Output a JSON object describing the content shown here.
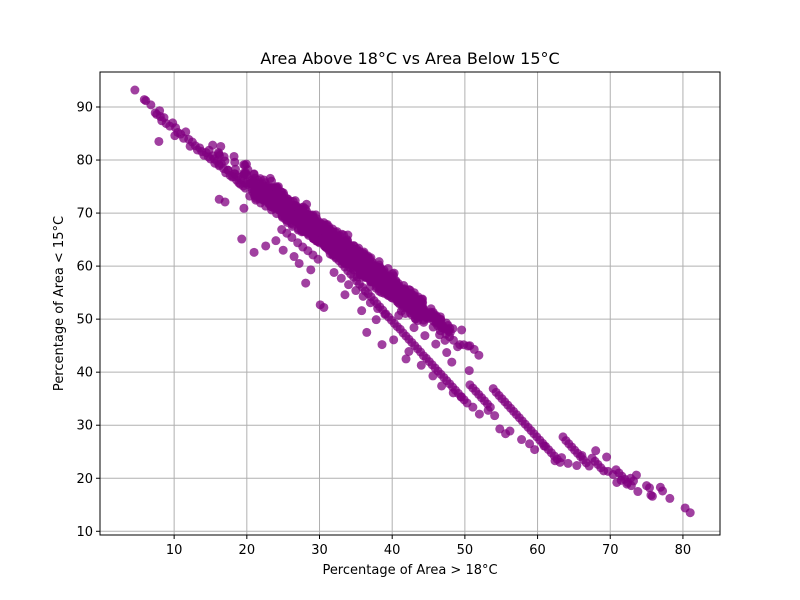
{
  "chart_data": {
    "type": "scatter",
    "title": "Area Above 18°C vs Area Below 15°C",
    "xlabel": "Percentage of Area > 18°C",
    "ylabel": "Percentage of Area < 15°C",
    "xlim": [
      -0.2,
      85.1
    ],
    "ylim": [
      9.3,
      96.6
    ],
    "xticks": [
      10,
      20,
      30,
      40,
      50,
      60,
      70,
      80
    ],
    "yticks": [
      10,
      20,
      30,
      40,
      50,
      60,
      70,
      80,
      90
    ],
    "grid": true,
    "marker_color": "#800080",
    "marker_alpha": 0.75,
    "trend": {
      "slope": -1.04,
      "intercept": 97.6,
      "spread": 1.7
    },
    "points": [
      [
        4.6,
        93.2
      ],
      [
        5.9,
        91.4
      ],
      [
        6.1,
        91.2
      ],
      [
        6.8,
        90.4
      ],
      [
        7.4,
        88.9
      ],
      [
        7.6,
        88.6
      ],
      [
        8.0,
        89.3
      ],
      [
        8.1,
        88.2
      ],
      [
        8.3,
        87.4
      ],
      [
        8.6,
        88.0
      ],
      [
        8.9,
        86.9
      ],
      [
        7.9,
        83.5
      ],
      [
        9.4,
        86.4
      ],
      [
        9.8,
        87.0
      ],
      [
        10.2,
        86.1
      ],
      [
        10.5,
        85.2
      ],
      [
        10.1,
        84.6
      ],
      [
        10.9,
        84.9
      ],
      [
        11.3,
        84.1
      ],
      [
        11.6,
        85.3
      ],
      [
        12.0,
        83.9
      ],
      [
        12.2,
        82.6
      ],
      [
        12.5,
        83.4
      ],
      [
        12.9,
        82.7
      ],
      [
        13.2,
        81.9
      ],
      [
        13.5,
        82.3
      ],
      [
        13.8,
        81.6
      ],
      [
        14.1,
        80.9
      ],
      [
        14.4,
        81.4
      ],
      [
        14.7,
        80.6
      ],
      [
        15.0,
        80.2
      ],
      [
        15.3,
        80.8
      ],
      [
        15.6,
        79.4
      ],
      [
        15.9,
        79.8
      ],
      [
        16.2,
        78.9
      ],
      [
        16.5,
        79.3
      ],
      [
        16.8,
        78.4
      ],
      [
        17.1,
        77.6
      ],
      [
        17.4,
        78.1
      ],
      [
        17.7,
        77.1
      ],
      [
        18.0,
        76.8
      ],
      [
        18.3,
        77.4
      ],
      [
        18.6,
        76.2
      ],
      [
        18.9,
        75.7
      ],
      [
        19.2,
        76.3
      ],
      [
        19.5,
        75.1
      ],
      [
        19.8,
        74.7
      ],
      [
        20.1,
        75.4
      ],
      [
        16.2,
        72.6
      ],
      [
        17.0,
        72.1
      ],
      [
        19.6,
        70.9
      ],
      [
        19.3,
        65.1
      ],
      [
        21.0,
        62.6
      ],
      [
        22.6,
        63.8
      ],
      [
        22.9,
        73.8
      ],
      [
        23.2,
        72.6
      ],
      [
        21.6,
        74.3
      ],
      [
        22.1,
        74.9
      ],
      [
        20.4,
        73.2
      ],
      [
        20.8,
        74.0
      ],
      [
        21.2,
        72.8
      ],
      [
        21.5,
        73.5
      ],
      [
        21.9,
        71.9
      ],
      [
        22.3,
        72.4
      ],
      [
        22.6,
        71.3
      ],
      [
        23.0,
        71.8
      ],
      [
        23.4,
        70.6
      ],
      [
        23.8,
        71.2
      ],
      [
        24.1,
        69.9
      ],
      [
        24.5,
        70.5
      ],
      [
        24.9,
        69.2
      ],
      [
        25.2,
        69.8
      ],
      [
        25.6,
        68.6
      ],
      [
        26.0,
        69.1
      ],
      [
        26.3,
        67.9
      ],
      [
        26.7,
        68.4
      ],
      [
        27.1,
        67.1
      ],
      [
        27.4,
        67.7
      ],
      [
        27.8,
        66.5
      ],
      [
        28.2,
        67.0
      ],
      [
        28.5,
        65.8
      ],
      [
        28.9,
        66.3
      ],
      [
        29.3,
        65.1
      ],
      [
        29.6,
        65.6
      ],
      [
        30.0,
        64.4
      ],
      [
        30.4,
        64.9
      ],
      [
        30.8,
        63.7
      ],
      [
        31.1,
        64.2
      ],
      [
        24.8,
        66.9
      ],
      [
        25.5,
        66.2
      ],
      [
        26.2,
        65.4
      ],
      [
        27.0,
        64.4
      ],
      [
        27.7,
        63.6
      ],
      [
        28.4,
        62.9
      ],
      [
        29.1,
        62.1
      ],
      [
        29.8,
        61.3
      ],
      [
        25.0,
        63.0
      ],
      [
        27.2,
        60.5
      ],
      [
        28.1,
        56.8
      ],
      [
        30.1,
        52.7
      ],
      [
        30.6,
        52.2
      ],
      [
        28.8,
        59.3
      ],
      [
        26.5,
        61.8
      ],
      [
        24.0,
        64.8
      ],
      [
        31.5,
        63.0
      ],
      [
        31.9,
        62.2
      ],
      [
        32.3,
        61.7
      ],
      [
        32.7,
        61.0
      ],
      [
        33.1,
        60.4
      ],
      [
        33.5,
        59.8
      ],
      [
        33.9,
        59.1
      ],
      [
        34.3,
        58.5
      ],
      [
        34.7,
        57.9
      ],
      [
        35.1,
        57.2
      ],
      [
        35.5,
        56.6
      ],
      [
        35.9,
        56.0
      ],
      [
        36.3,
        55.3
      ],
      [
        36.7,
        54.8
      ],
      [
        37.1,
        54.2
      ],
      [
        37.5,
        53.5
      ],
      [
        37.9,
        52.9
      ],
      [
        38.3,
        52.3
      ],
      [
        38.7,
        51.7
      ],
      [
        39.1,
        51.0
      ],
      [
        39.5,
        50.4
      ],
      [
        39.9,
        49.8
      ],
      [
        40.3,
        49.2
      ],
      [
        40.7,
        48.6
      ],
      [
        32.0,
        58.8
      ],
      [
        33.0,
        57.7
      ],
      [
        34.0,
        56.5
      ],
      [
        35.0,
        55.4
      ],
      [
        36.0,
        54.3
      ],
      [
        37.0,
        53.1
      ],
      [
        38.0,
        52.0
      ],
      [
        39.0,
        50.9
      ],
      [
        33.5,
        54.6
      ],
      [
        35.8,
        51.6
      ],
      [
        37.8,
        49.9
      ],
      [
        36.5,
        47.5
      ],
      [
        38.6,
        45.2
      ],
      [
        40.2,
        46.1
      ],
      [
        41.9,
        42.5
      ],
      [
        42.3,
        43.9
      ],
      [
        32.5,
        62.4
      ],
      [
        34.2,
        60.8
      ],
      [
        36.0,
        58.6
      ],
      [
        37.6,
        56.8
      ],
      [
        39.4,
        54.5
      ],
      [
        41.0,
        52.9
      ],
      [
        42.5,
        51.2
      ],
      [
        40.9,
        50.7
      ],
      [
        41.1,
        48.1
      ],
      [
        41.5,
        47.4
      ],
      [
        41.9,
        46.8
      ],
      [
        42.3,
        46.2
      ],
      [
        42.7,
        45.6
      ],
      [
        43.1,
        45.0
      ],
      [
        43.5,
        44.4
      ],
      [
        43.9,
        43.8
      ],
      [
        44.3,
        43.1
      ],
      [
        44.7,
        42.6
      ],
      [
        45.1,
        42.0
      ],
      [
        45.5,
        41.4
      ],
      [
        45.9,
        40.8
      ],
      [
        46.3,
        40.2
      ],
      [
        46.7,
        39.6
      ],
      [
        47.1,
        39.0
      ],
      [
        47.5,
        38.4
      ],
      [
        47.9,
        37.8
      ],
      [
        48.3,
        37.2
      ],
      [
        48.7,
        36.6
      ],
      [
        49.1,
        36.0
      ],
      [
        49.5,
        35.4
      ],
      [
        49.9,
        34.8
      ],
      [
        50.3,
        34.2
      ],
      [
        43.0,
        48.4
      ],
      [
        44.5,
        46.9
      ],
      [
        46.0,
        45.3
      ],
      [
        47.5,
        43.7
      ],
      [
        49.0,
        44.8
      ],
      [
        49.3,
        45.2
      ],
      [
        48.2,
        41.9
      ],
      [
        50.6,
        40.3
      ],
      [
        44.0,
        41.3
      ],
      [
        45.6,
        39.3
      ],
      [
        46.8,
        37.4
      ],
      [
        48.4,
        36.1
      ],
      [
        49.5,
        35.3
      ],
      [
        51.1,
        33.4
      ],
      [
        52.0,
        32.1
      ],
      [
        53.2,
        32.8
      ],
      [
        50.7,
        37.6
      ],
      [
        51.1,
        37.0
      ],
      [
        51.5,
        36.4
      ],
      [
        51.9,
        35.8
      ],
      [
        52.3,
        35.2
      ],
      [
        52.7,
        34.6
      ],
      [
        53.1,
        34.0
      ],
      [
        53.5,
        33.4
      ],
      [
        53.9,
        36.9
      ],
      [
        54.3,
        36.2
      ],
      [
        54.7,
        35.6
      ],
      [
        55.1,
        35.0
      ],
      [
        55.5,
        34.4
      ],
      [
        55.9,
        33.8
      ],
      [
        56.3,
        33.2
      ],
      [
        56.7,
        32.6
      ],
      [
        57.1,
        32.0
      ],
      [
        57.5,
        31.4
      ],
      [
        57.9,
        30.8
      ],
      [
        58.3,
        30.2
      ],
      [
        58.7,
        29.6
      ],
      [
        59.1,
        29.0
      ],
      [
        59.5,
        28.4
      ],
      [
        59.9,
        27.8
      ],
      [
        54.1,
        31.8
      ],
      [
        54.8,
        29.3
      ],
      [
        55.6,
        28.4
      ],
      [
        56.2,
        28.9
      ],
      [
        57.8,
        27.3
      ],
      [
        58.9,
        26.5
      ],
      [
        59.6,
        25.4
      ],
      [
        60.9,
        26.1
      ],
      [
        60.3,
        27.2
      ],
      [
        60.7,
        26.6
      ],
      [
        61.1,
        26.0
      ],
      [
        61.5,
        25.4
      ],
      [
        61.9,
        24.8
      ],
      [
        62.3,
        24.2
      ],
      [
        62.7,
        23.6
      ],
      [
        63.1,
        23.0
      ],
      [
        63.5,
        27.8
      ],
      [
        63.9,
        27.1
      ],
      [
        64.3,
        26.5
      ],
      [
        64.7,
        25.9
      ],
      [
        65.1,
        25.3
      ],
      [
        65.5,
        24.7
      ],
      [
        65.9,
        24.1
      ],
      [
        66.3,
        23.5
      ],
      [
        66.7,
        22.9
      ],
      [
        67.1,
        22.3
      ],
      [
        67.5,
        23.8
      ],
      [
        67.9,
        23.2
      ],
      [
        68.3,
        22.6
      ],
      [
        68.7,
        22.0
      ],
      [
        69.1,
        21.4
      ],
      [
        69.5,
        24.0
      ],
      [
        62.4,
        23.3
      ],
      [
        63.3,
        23.9
      ],
      [
        64.2,
        22.8
      ],
      [
        65.4,
        22.4
      ],
      [
        66.1,
        24.3
      ],
      [
        68.0,
        25.2
      ],
      [
        69.7,
        21.3
      ],
      [
        70.4,
        20.7
      ],
      [
        70.8,
        21.6
      ],
      [
        71.2,
        21.0
      ],
      [
        71.6,
        20.4
      ],
      [
        72.0,
        19.8
      ],
      [
        72.4,
        19.2
      ],
      [
        72.8,
        20.0
      ],
      [
        73.2,
        19.5
      ],
      [
        73.6,
        20.6
      ],
      [
        70.9,
        19.2
      ],
      [
        71.5,
        19.6
      ],
      [
        72.3,
        18.9
      ],
      [
        72.9,
        18.6
      ],
      [
        73.8,
        17.5
      ],
      [
        75.0,
        18.6
      ],
      [
        75.4,
        18.2
      ],
      [
        75.8,
        16.6
      ],
      [
        75.6,
        16.8
      ],
      [
        76.9,
        18.3
      ],
      [
        77.2,
        17.6
      ],
      [
        78.2,
        16.2
      ],
      [
        80.3,
        14.4
      ],
      [
        81.0,
        13.5
      ]
    ]
  }
}
